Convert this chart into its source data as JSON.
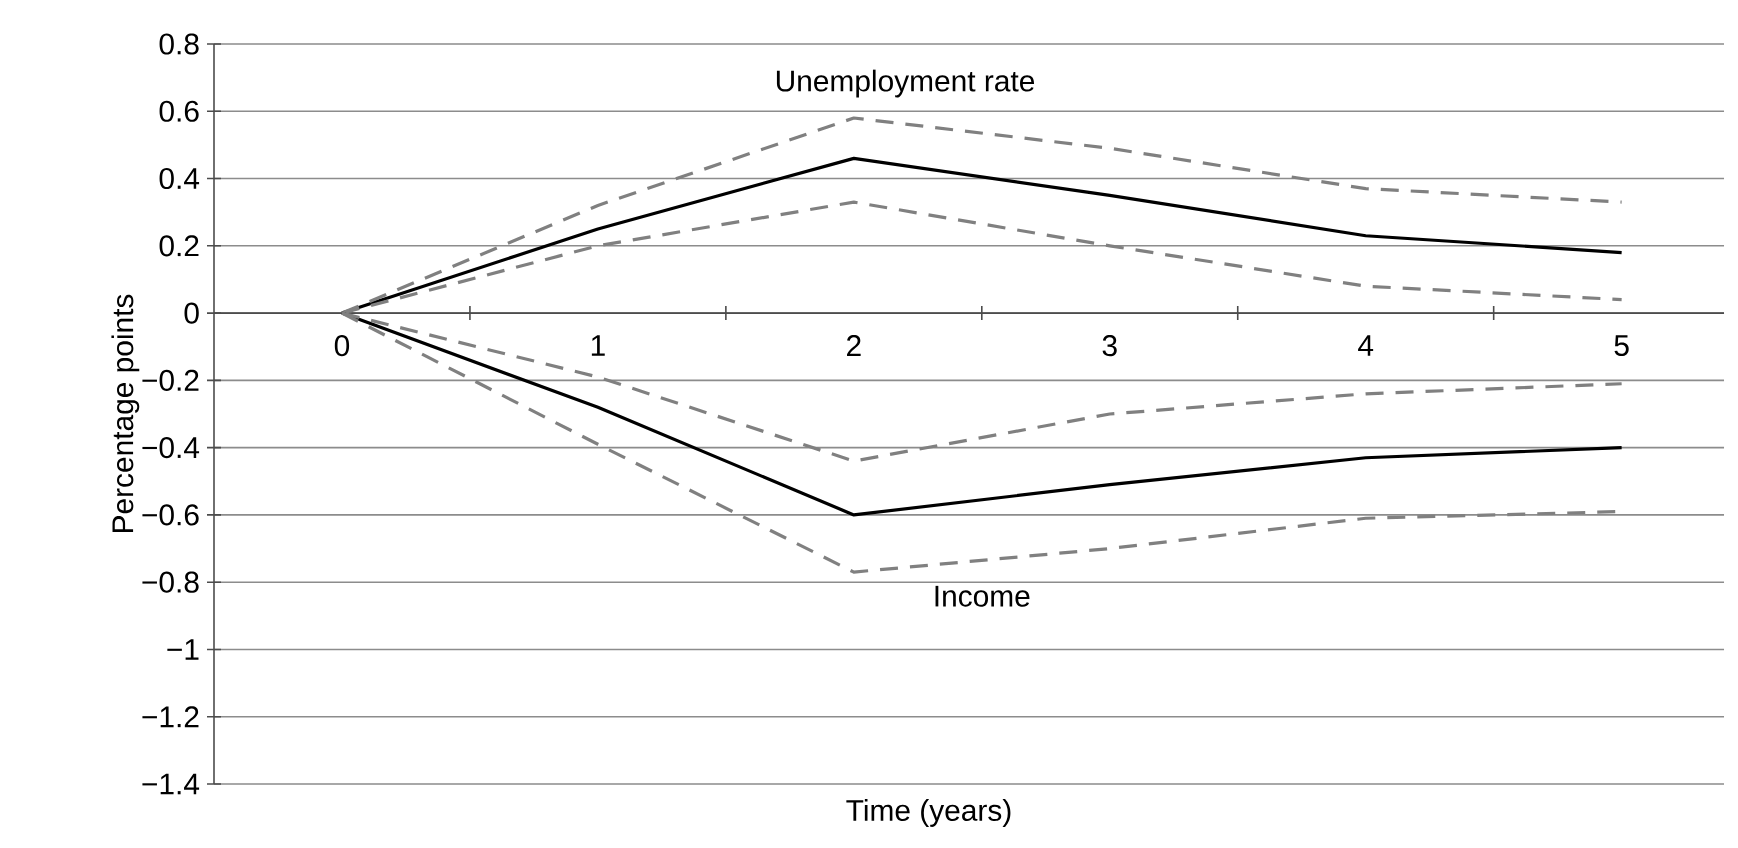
{
  "chart_data": {
    "type": "line",
    "xlabel": "Time (years)",
    "ylabel": "Percentage points",
    "categories": [
      "0",
      "1",
      "2",
      "3",
      "4",
      "5"
    ],
    "ylim": [
      -1.4,
      0.8
    ],
    "yticks": [
      0.8,
      0.6,
      0.4,
      0.2,
      0,
      {
        "value": -0.2,
        "label": "−0.2"
      },
      {
        "value": -0.4,
        "label": "−0.4"
      },
      {
        "value": -0.6,
        "label": "−0.6"
      },
      {
        "value": -0.8,
        "label": "−0.8"
      },
      {
        "value": -1,
        "label": "−1"
      },
      {
        "value": -1.2,
        "label": "−1.2"
      },
      {
        "value": -1.4,
        "label": "−1.4"
      }
    ],
    "grid": "y",
    "marker": "none",
    "series": [
      {
        "name": "Unemployment rate",
        "color": "#000000",
        "line_style": "solid",
        "values": [
          0,
          0.25,
          0.46,
          0.35,
          0.23,
          0.18
        ]
      },
      {
        "color": "#808080",
        "line_style": "dashed",
        "values": [
          0,
          0.32,
          0.58,
          0.49,
          0.37,
          0.33
        ]
      },
      {
        "color": "#808080",
        "line_style": "dashed",
        "values": [
          0,
          0.2,
          0.33,
          0.2,
          0.08,
          0.04
        ]
      },
      {
        "name": "Income",
        "color": "#000000",
        "line_style": "solid",
        "values": [
          0,
          -0.28,
          -0.6,
          -0.51,
          -0.43,
          -0.4
        ]
      },
      {
        "color": "#808080",
        "line_style": "dashed",
        "values": [
          0,
          -0.19,
          -0.44,
          -0.3,
          -0.24,
          -0.21
        ]
      },
      {
        "color": "#808080",
        "line_style": "dashed",
        "values": [
          0,
          -0.39,
          -0.77,
          -0.7,
          -0.61,
          -0.59
        ]
      }
    ]
  }
}
